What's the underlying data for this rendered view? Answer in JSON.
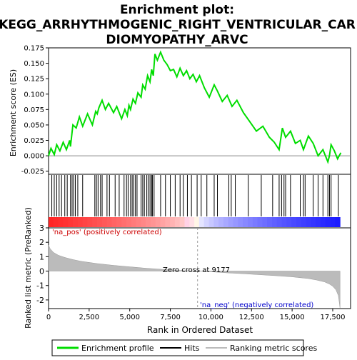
{
  "chart_data": {
    "type": "line",
    "title_lines": [
      "Enrichment plot:",
      "KEGG_ARRHYTHMOGENIC_RIGHT_VENTRICULAR_CAR",
      "DIOMYOPATHY_ARVC"
    ],
    "top_panel": {
      "ylabel": "Enrichment score (ES)",
      "ylim": [
        -0.03,
        0.175
      ],
      "yticks": [
        "0.175",
        "0.150",
        "0.125",
        "0.100",
        "0.075",
        "0.050",
        "0.025",
        "0.000",
        "-0.025"
      ],
      "series_name": "Enrichment profile",
      "series_color": "#00dd00",
      "x": [
        0,
        150,
        350,
        500,
        700,
        900,
        1100,
        1300,
        1350,
        1500,
        1700,
        1900,
        2100,
        2400,
        2700,
        2900,
        3000,
        3100,
        3300,
        3500,
        3700,
        4000,
        4200,
        4500,
        4700,
        4850,
        4950,
        5050,
        5200,
        5350,
        5500,
        5700,
        5800,
        5950,
        6100,
        6250,
        6350,
        6450,
        6550,
        6700,
        6900,
        7100,
        7300,
        7500,
        7700,
        7900,
        8100,
        8300,
        8500,
        8700,
        8900,
        9100,
        9300,
        9600,
        9900,
        10200,
        10400,
        10700,
        11000,
        11300,
        11600,
        12000,
        12400,
        12800,
        13200,
        13600,
        13900,
        14200,
        14400,
        14600,
        14900,
        15200,
        15500,
        15700,
        16000,
        16300,
        16600,
        16900,
        17200,
        17300,
        17400,
        17600,
        17800,
        18000
      ],
      "y": [
        0.0,
        0.012,
        0.002,
        0.018,
        0.008,
        0.022,
        0.01,
        0.025,
        0.015,
        0.05,
        0.045,
        0.063,
        0.048,
        0.068,
        0.05,
        0.072,
        0.068,
        0.078,
        0.09,
        0.075,
        0.085,
        0.07,
        0.08,
        0.06,
        0.075,
        0.065,
        0.082,
        0.075,
        0.092,
        0.085,
        0.102,
        0.095,
        0.115,
        0.108,
        0.13,
        0.12,
        0.14,
        0.13,
        0.165,
        0.155,
        0.168,
        0.155,
        0.148,
        0.138,
        0.14,
        0.128,
        0.142,
        0.13,
        0.138,
        0.125,
        0.132,
        0.12,
        0.13,
        0.11,
        0.095,
        0.115,
        0.105,
        0.088,
        0.098,
        0.08,
        0.09,
        0.07,
        0.055,
        0.04,
        0.048,
        0.03,
        0.022,
        0.01,
        0.045,
        0.03,
        0.04,
        0.02,
        0.025,
        0.01,
        0.032,
        0.02,
        0.0,
        0.01,
        -0.01,
        0.0,
        0.018,
        0.008,
        -0.005,
        0.005
      ]
    },
    "hits_panel": {
      "legend_label": "Hits",
      "hit_positions": [
        200,
        350,
        500,
        650,
        800,
        1000,
        1150,
        1350,
        1450,
        1550,
        1650,
        1800,
        2100,
        2850,
        2950,
        3050,
        3200,
        3300,
        3600,
        3750,
        4100,
        4350,
        4650,
        4800,
        4900,
        5050,
        5150,
        5250,
        5350,
        5450,
        5700,
        5800,
        5900,
        6050,
        6150,
        6250,
        6350,
        6400,
        6500,
        6900,
        7200,
        7500,
        7800,
        8100,
        8300,
        8550,
        8800,
        9150,
        9400,
        9750,
        10200,
        10400,
        11100,
        11250,
        11500,
        12300,
        13100,
        13800,
        14200,
        14350,
        14500,
        14600,
        14900,
        15500,
        15700,
        15800,
        16300,
        16600,
        16900,
        17200,
        17300,
        17400,
        17850
      ]
    },
    "bottom_panel": {
      "ylabel": "Ranked list metric (PreRanked)",
      "ylim": [
        -2.6,
        3.0
      ],
      "yticks": [
        "3",
        "2",
        "1",
        "0",
        "-1",
        "-2"
      ],
      "series_name": "Ranking metric scores",
      "curve_x": [
        0,
        100,
        300,
        600,
        1000,
        1500,
        2000,
        3000,
        4000,
        5000,
        6000,
        7000,
        8000,
        9177,
        10000,
        11000,
        12000,
        13000,
        14000,
        15000,
        16000,
        16500,
        17000,
        17300,
        17500,
        17700,
        17850,
        17950
      ],
      "curve_y": [
        1.8,
        1.55,
        1.3,
        1.1,
        0.95,
        0.8,
        0.68,
        0.52,
        0.4,
        0.3,
        0.2,
        0.12,
        0.05,
        0.0,
        -0.05,
        -0.12,
        -0.18,
        -0.25,
        -0.32,
        -0.4,
        -0.52,
        -0.62,
        -0.75,
        -0.9,
        -1.05,
        -1.3,
        -1.7,
        -2.55
      ],
      "zero_cross_label": "Zero cross at 9177",
      "zero_cross": 9177,
      "pos_label": "'na_pos' (positively correlated)",
      "neg_label": "'na_neg' (negatively correlated)",
      "pos_color": "#cc0000",
      "neg_color": "#0000cc"
    },
    "xlabel": "Rank in Ordered Dataset",
    "xlim": [
      0,
      18600
    ],
    "xticks": [
      "0",
      "2,500",
      "5,000",
      "7,500",
      "10,000",
      "12,500",
      "15,000",
      "17,500"
    ],
    "xtick_values": [
      0,
      2500,
      5000,
      7500,
      10000,
      12500,
      15000,
      17500
    ],
    "legend": [
      {
        "label": "Enrichment profile",
        "color": "#00dd00"
      },
      {
        "label": "Hits",
        "color": "#000000"
      },
      {
        "label": "Ranking metric scores",
        "color": "#bbbbbb"
      }
    ]
  }
}
